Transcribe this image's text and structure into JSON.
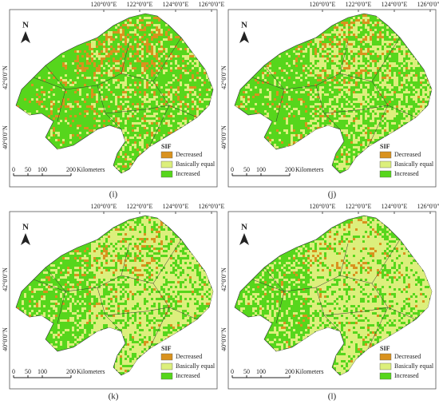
{
  "lon_labels": [
    "120°0'0\"E",
    "122°0'0\"E",
    "124°0'0\"E",
    "126°0'0\"E"
  ],
  "lat_labels": [
    "42°0'0\"N",
    "40°0'0\"N"
  ],
  "north": "N",
  "legend": {
    "title": "SIF",
    "items": [
      {
        "label": "Decreased",
        "color": "#d9921e"
      },
      {
        "label": "Basically equal",
        "color": "#dcef7c"
      },
      {
        "label": "Increased",
        "color": "#56d61c"
      }
    ]
  },
  "scale": {
    "ticks": [
      "0",
      "50",
      "100",
      "200"
    ],
    "unit": "Kilometers"
  },
  "panels": [
    {
      "label": "(i)"
    },
    {
      "label": "(j)"
    },
    {
      "label": "(k)"
    },
    {
      "label": "(l)"
    }
  ]
}
